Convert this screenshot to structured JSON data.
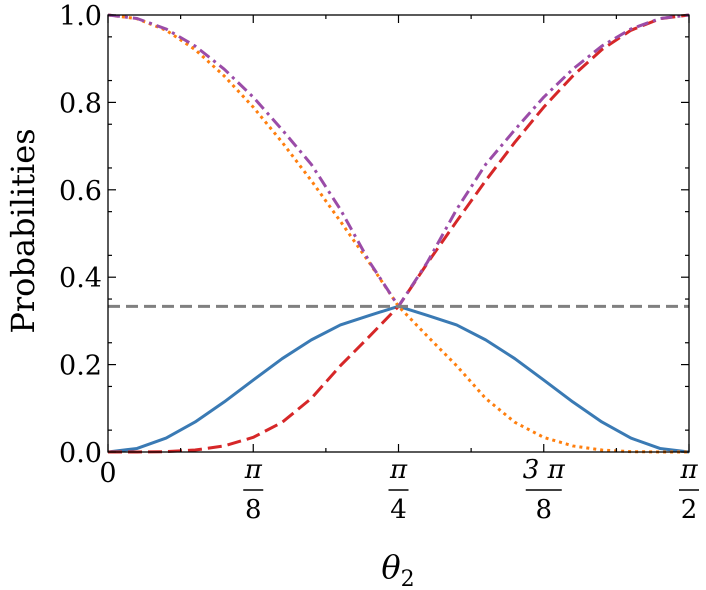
{
  "chart_data": {
    "type": "line",
    "title": "",
    "xlabel": "θ",
    "xlabel_sub": "2",
    "ylabel": "Probabilities",
    "xlim": [
      0,
      1.5707963
    ],
    "ylim": [
      0,
      1.0
    ],
    "yticks": [
      {
        "value": 0.0,
        "label": "0.0"
      },
      {
        "value": 0.2,
        "label": "0.2"
      },
      {
        "value": 0.4,
        "label": "0.4"
      },
      {
        "value": 0.6,
        "label": "0.6"
      },
      {
        "value": 0.8,
        "label": "0.8"
      },
      {
        "value": 1.0,
        "label": "1.0"
      }
    ],
    "xticks": [
      {
        "value": 0,
        "num": "0",
        "den": ""
      },
      {
        "value": 0.3926991,
        "num": "π",
        "den": "8"
      },
      {
        "value": 0.7853982,
        "num": "π",
        "den": "4"
      },
      {
        "value": 1.1780972,
        "num": "3 π",
        "den": "8"
      },
      {
        "value": 1.5707963,
        "num": "π",
        "den": "2"
      }
    ],
    "grid": false,
    "series": [
      {
        "style": "solid",
        "color": "#3a7ab4",
        "x": [
          0,
          0.0785,
          0.1571,
          0.2356,
          0.3142,
          0.3927,
          0.4712,
          0.5498,
          0.6283,
          0.7069,
          0.7854,
          0.8639,
          0.9425,
          1.021,
          1.0996,
          1.1781,
          1.2566,
          1.3352,
          1.4137,
          1.4923,
          1.5708
        ],
        "y": [
          0,
          0.0081,
          0.0318,
          0.0687,
          0.1146,
          0.1646,
          0.2138,
          0.2566,
          0.2907,
          0.3126,
          0.3333,
          0.3126,
          0.2907,
          0.2566,
          0.2138,
          0.1646,
          0.1146,
          0.0687,
          0.0318,
          0.0081,
          0
        ]
      },
      {
        "style": "dashed",
        "color": "#d62728",
        "x": [
          0,
          0.0785,
          0.1571,
          0.2356,
          0.3142,
          0.3927,
          0.4712,
          0.5498,
          0.6283,
          0.7069,
          0.7854,
          0.8639,
          0.9425,
          1.021,
          1.0996,
          1.1781,
          1.2566,
          1.3352,
          1.4137,
          1.4923,
          1.5708
        ],
        "y": [
          0,
          0.0001,
          0.0008,
          0.0045,
          0.0139,
          0.0335,
          0.0682,
          0.1227,
          0.1974,
          0.2647,
          0.3333,
          0.4327,
          0.5279,
          0.6208,
          0.7084,
          0.7891,
          0.8605,
          0.9208,
          0.965,
          0.9915,
          1.0
        ]
      },
      {
        "style": "dotted",
        "color": "#ff7f0e",
        "x": [
          0,
          0.0785,
          0.1571,
          0.2356,
          0.3142,
          0.3927,
          0.4712,
          0.5498,
          0.6283,
          0.7069,
          0.7854,
          0.8639,
          0.9425,
          1.021,
          1.0996,
          1.1781,
          1.2566,
          1.3352,
          1.4137,
          1.4923,
          1.5708
        ],
        "y": [
          1.0,
          0.9915,
          0.965,
          0.9208,
          0.8605,
          0.7891,
          0.7084,
          0.6208,
          0.5279,
          0.4327,
          0.3333,
          0.2647,
          0.1974,
          0.1227,
          0.0682,
          0.0335,
          0.0139,
          0.0045,
          0.0008,
          0.0001,
          0
        ]
      },
      {
        "style": "dashdot",
        "color": "#9b4ca8",
        "x": [
          0,
          0.0785,
          0.1571,
          0.2356,
          0.3142,
          0.3927,
          0.4712,
          0.5498,
          0.6283,
          0.7069,
          0.7854,
          0.8639,
          0.9425,
          1.021,
          1.0996,
          1.1781,
          1.2566,
          1.3352,
          1.4137,
          1.4923,
          1.5708
        ],
        "y": [
          1.0,
          0.992,
          0.968,
          0.929,
          0.876,
          0.812,
          0.737,
          0.658,
          0.555,
          0.435,
          0.3333,
          0.435,
          0.555,
          0.658,
          0.737,
          0.812,
          0.876,
          0.929,
          0.968,
          0.992,
          1.0
        ]
      },
      {
        "style": "dashed-ref",
        "color": "#808080",
        "x": [
          0,
          1.5708
        ],
        "y": [
          0.3333,
          0.3333
        ]
      }
    ]
  }
}
